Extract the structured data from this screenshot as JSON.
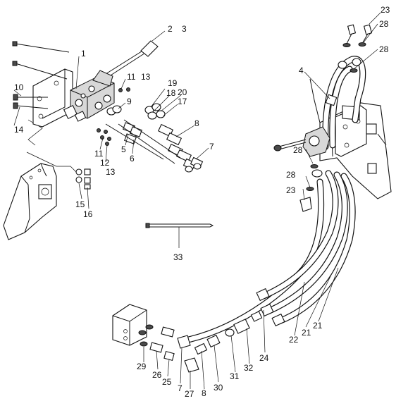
{
  "callouts": [
    {
      "id": "c1",
      "text": "1"
    },
    {
      "id": "c2",
      "text": "2"
    },
    {
      "id": "c3",
      "text": "3"
    },
    {
      "id": "c4",
      "text": "4"
    },
    {
      "id": "c5",
      "text": "5"
    },
    {
      "id": "c6",
      "text": "6"
    },
    {
      "id": "c7a",
      "text": "7"
    },
    {
      "id": "c7b",
      "text": "7"
    },
    {
      "id": "c8a",
      "text": "8"
    },
    {
      "id": "c8b",
      "text": "8"
    },
    {
      "id": "c9",
      "text": "9"
    },
    {
      "id": "c10",
      "text": "10"
    },
    {
      "id": "c11a",
      "text": "11"
    },
    {
      "id": "c11b",
      "text": "11"
    },
    {
      "id": "c12",
      "text": "12"
    },
    {
      "id": "c13a",
      "text": "13"
    },
    {
      "id": "c13b",
      "text": "13"
    },
    {
      "id": "c14",
      "text": "14"
    },
    {
      "id": "c15",
      "text": "15"
    },
    {
      "id": "c16",
      "text": "16"
    },
    {
      "id": "c17",
      "text": "17"
    },
    {
      "id": "c18",
      "text": "18"
    },
    {
      "id": "c19",
      "text": "19"
    },
    {
      "id": "c20",
      "text": "20"
    },
    {
      "id": "c21a",
      "text": "21"
    },
    {
      "id": "c21b",
      "text": "21"
    },
    {
      "id": "c22",
      "text": "22"
    },
    {
      "id": "c23a",
      "text": "23"
    },
    {
      "id": "c23b",
      "text": "23"
    },
    {
      "id": "c24",
      "text": "24"
    },
    {
      "id": "c25",
      "text": "25"
    },
    {
      "id": "c26",
      "text": "26"
    },
    {
      "id": "c27",
      "text": "27"
    },
    {
      "id": "c28a",
      "text": "28"
    },
    {
      "id": "c28b",
      "text": "28"
    },
    {
      "id": "c28c",
      "text": "28"
    },
    {
      "id": "c28d",
      "text": "28"
    },
    {
      "id": "c29",
      "text": "29"
    },
    {
      "id": "c30",
      "text": "30"
    },
    {
      "id": "c31",
      "text": "31"
    },
    {
      "id": "c32",
      "text": "32"
    },
    {
      "id": "c33",
      "text": "33"
    }
  ],
  "colors": {
    "ink": "#111111",
    "paper": "#ffffff",
    "shade": "#d8d8d8"
  }
}
